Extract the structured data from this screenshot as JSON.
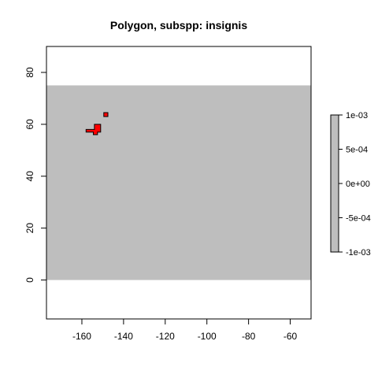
{
  "chart_data": {
    "type": "heatmap",
    "title": "Polygon, subspp: insignis",
    "xlabel": "",
    "ylabel": "",
    "xlim": [
      -177,
      -50
    ],
    "ylim": [
      -15,
      90
    ],
    "x_ticks": [
      -160,
      -140,
      -120,
      -100,
      -80,
      -60
    ],
    "y_ticks": [
      0,
      20,
      40,
      60,
      80
    ],
    "raster": {
      "xmin": -177,
      "xmax": -50,
      "ymin": 0,
      "ymax": 75,
      "fill_color": "#bebebe",
      "value": 0
    },
    "polygons": [
      {
        "fill_color": "#ff0000",
        "outline_color": "#000000",
        "vertices": [
          [
            -158,
            57
          ],
          [
            -154.5,
            57
          ],
          [
            -154.5,
            56
          ],
          [
            -152.5,
            56
          ],
          [
            -152.5,
            57
          ],
          [
            -151,
            57
          ],
          [
            -151,
            60
          ],
          [
            -154,
            60
          ],
          [
            -154,
            58
          ],
          [
            -158,
            58
          ]
        ]
      },
      {
        "fill_color": "#ff0000",
        "outline_color": "#000000",
        "vertices": [
          [
            -149.5,
            63
          ],
          [
            -147.5,
            63
          ],
          [
            -147.5,
            64.5
          ],
          [
            -149.5,
            64.5
          ]
        ]
      }
    ],
    "legend": {
      "position": "right",
      "color": "#bebebe",
      "ticks": [
        {
          "value": 0.001,
          "label": "1e-03"
        },
        {
          "value": 0.0005,
          "label": "5e-04"
        },
        {
          "value": 0,
          "label": "0e+00"
        },
        {
          "value": -0.0005,
          "label": "-5e-04"
        },
        {
          "value": -0.001,
          "label": "-1e-03"
        }
      ],
      "range": [
        -0.001,
        0.001
      ]
    },
    "grid": false
  }
}
